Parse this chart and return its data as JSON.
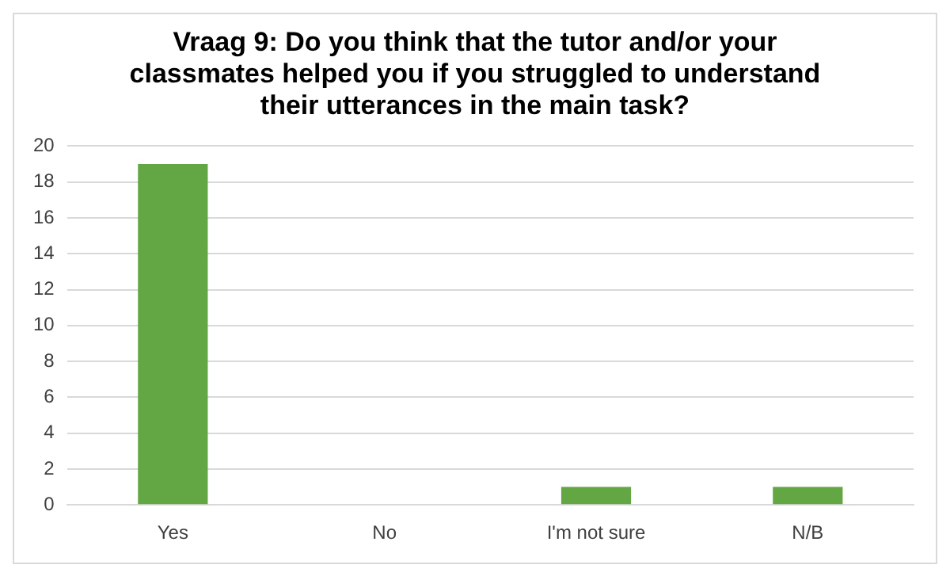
{
  "chart_data": {
    "type": "bar",
    "title": "Vraag 9: Do you think that the tutor and/or your classmates helped you if you struggled to understand their utterances in the main task?",
    "categories": [
      "Yes",
      "No",
      "I'm not sure",
      "N/B"
    ],
    "values": [
      19,
      0,
      1,
      1
    ],
    "color": "#62a744",
    "ylim": [
      0,
      20
    ],
    "yticks": [
      0,
      2,
      4,
      6,
      8,
      10,
      12,
      14,
      16,
      18,
      20
    ],
    "grid": "y"
  }
}
